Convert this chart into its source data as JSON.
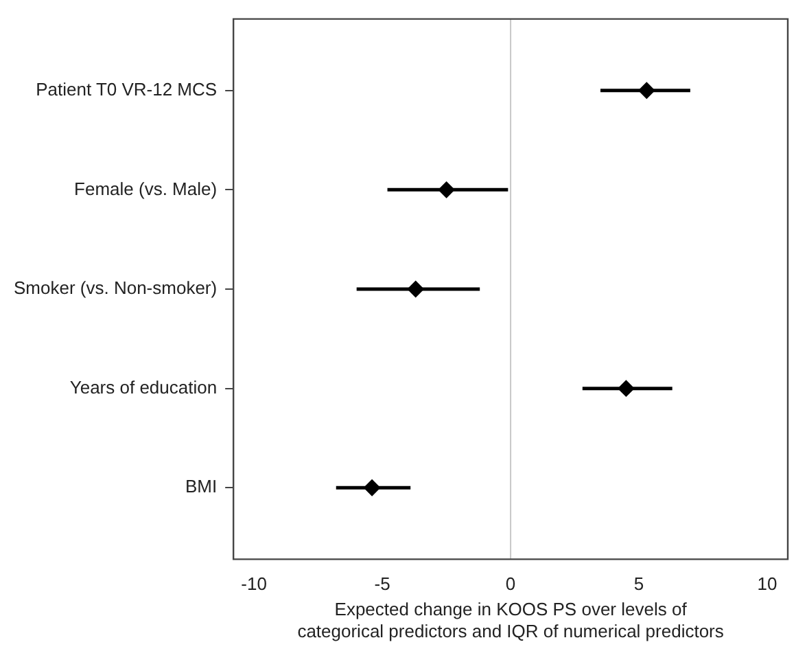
{
  "chart_data": {
    "type": "scatter",
    "orientation": "horizontal",
    "categories": [
      "Patient T0 VR-12 MCS",
      "Female (vs. Male)",
      "Smoker (vs. Non-smoker)",
      "Years of education",
      "BMI"
    ],
    "values": [
      5.3,
      -2.5,
      -3.7,
      4.5,
      -5.4
    ],
    "errors": [
      [
        3.5,
        7.0
      ],
      [
        -4.8,
        -0.1
      ],
      [
        -6.0,
        -1.2
      ],
      [
        2.8,
        6.3
      ],
      [
        -6.8,
        -3.9
      ]
    ],
    "color": "#000000",
    "marker": "diamond",
    "xlabel": "Expected change in KOOS PS over levels of\ncategorical predictors and IQR of numerical predictors",
    "xlim": [
      -10.8,
      10.8
    ],
    "xticks": [
      -10,
      -5,
      0,
      5,
      10
    ],
    "ref_lines": [
      {
        "axis": "x",
        "value": 0,
        "color": "#c8c8c8"
      }
    ],
    "grid": false,
    "legend": false
  }
}
